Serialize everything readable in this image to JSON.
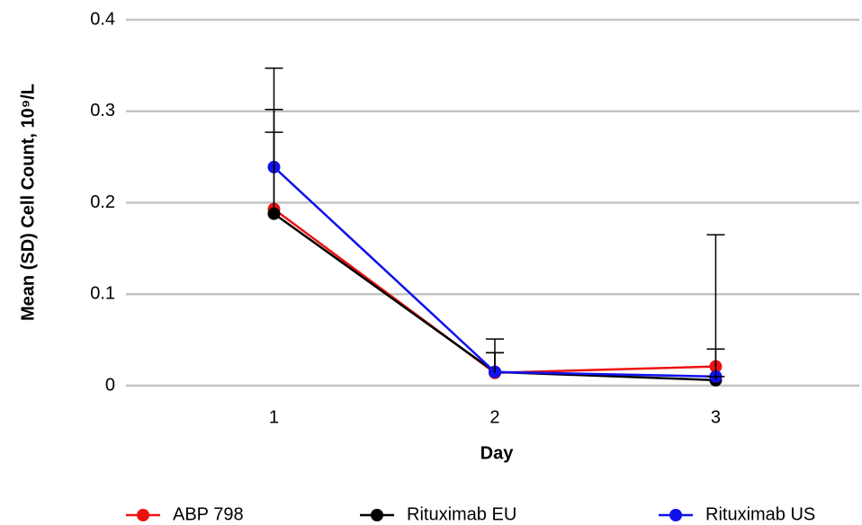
{
  "chart_data": {
    "type": "line",
    "y_label": "Mean (SD) Cell Count, 10⁹/L",
    "x_label": "Day",
    "x": [
      1,
      2,
      3
    ],
    "xlim": [
      0.33,
      3.65
    ],
    "xticks": [
      1,
      2,
      3
    ],
    "ylim": [
      0,
      0.4
    ],
    "yticks": [
      0,
      0.1,
      0.2,
      0.3,
      0.4
    ],
    "grid": true,
    "legend": "bottom",
    "error_color": "#000000",
    "series": [
      {
        "name": "ABP 798",
        "color": "#ee1111",
        "values": [
          0.193,
          0.014,
          0.021
        ],
        "errors": [
          0.109,
          0.022,
          0.144
        ]
      },
      {
        "name": "Rituximab EU",
        "color": "#000000",
        "values": [
          0.188,
          0.015,
          0.006
        ],
        "errors": [
          0.089,
          0.021,
          0.004
        ]
      },
      {
        "name": "Rituximab US",
        "color": "#1111ee",
        "values": [
          0.239,
          0.015,
          0.01
        ],
        "errors": [
          0.108,
          0.036,
          0.03
        ]
      }
    ]
  }
}
